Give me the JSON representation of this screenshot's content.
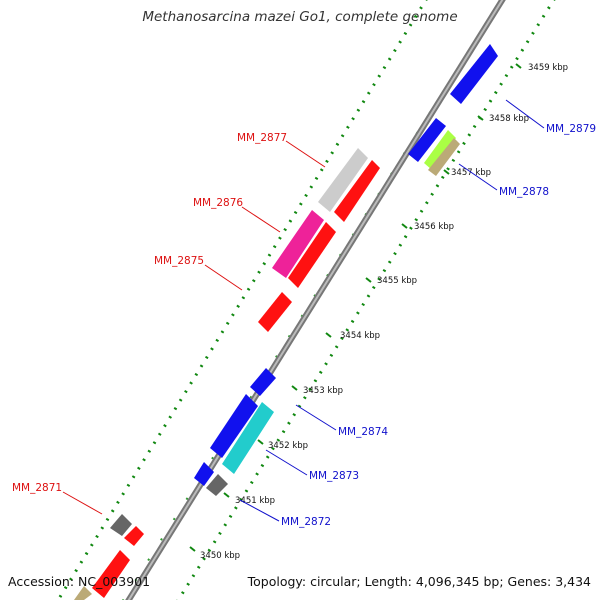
{
  "title": "Methanosarcina mazei Go1, complete genome",
  "footer": {
    "accession": "Accession: NC_003901",
    "summary": "Topology: circular; Length: 4,096,345 bp; Genes: 3,434"
  },
  "ticks": [
    "3450 kbp",
    "3451 kbp",
    "3452 kbp",
    "3453 kbp",
    "3454 kbp",
    "3455 kbp",
    "3456 kbp",
    "3457 kbp",
    "3458 kbp",
    "3459 kbp"
  ],
  "gene_labels": {
    "left": [
      "MM_2877",
      "MM_2876",
      "MM_2875",
      "MM_2871"
    ],
    "right": [
      "MM_2879",
      "MM_2878",
      "MM_2874",
      "MM_2873",
      "MM_2872"
    ]
  },
  "colors": {
    "backbone": "#8a8a8a",
    "dots_outer": "#118811",
    "reverse_label": "#dd1111",
    "forward_label": "#1111cc",
    "gene_red": "#ff1111",
    "gene_blue": "#1111ee",
    "gene_cyan": "#22cccc",
    "gene_magenta": "#ee2299",
    "gene_lightgray": "#cccccc",
    "gene_darkgray": "#666666",
    "gene_lime": "#aaff44",
    "gene_khaki": "#bbaa77"
  }
}
